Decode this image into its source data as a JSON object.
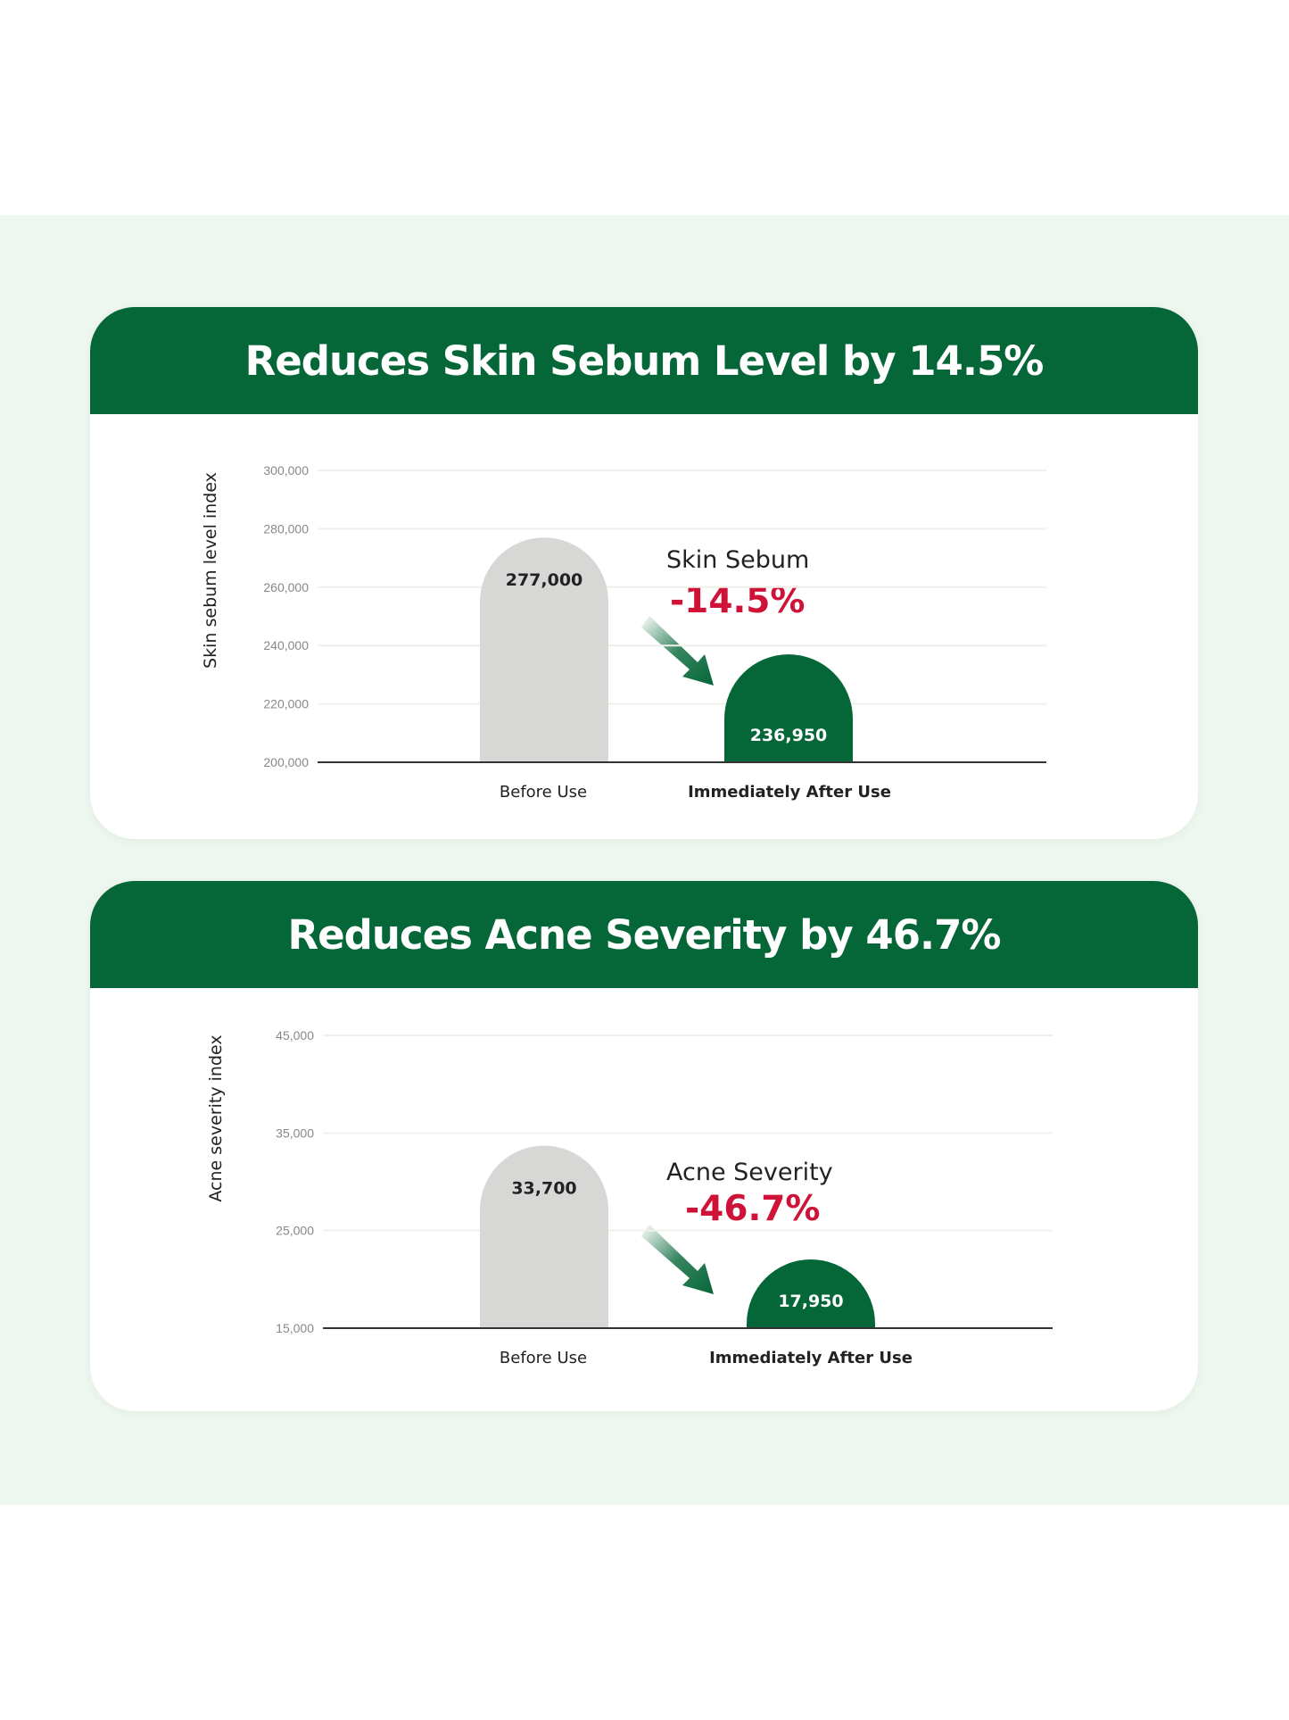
{
  "colors": {
    "background": "#eef7ef",
    "header": "#056638",
    "before_bar": "#d7d8d6",
    "after_bar": "#056638",
    "highlight": "#cf1237"
  },
  "chart_data": [
    {
      "type": "bar",
      "title": "Reduces Skin Sebum Level by 14.5%",
      "ylabel": "Skin sebum level index",
      "ylim": [
        200000,
        300000
      ],
      "yticks": [
        "300,000",
        "280,000",
        "260,000",
        "240,000",
        "220,000",
        "200,000"
      ],
      "ytick_values": [
        300000,
        280000,
        260000,
        240000,
        220000,
        200000
      ],
      "categories": [
        "Before Use",
        "Immediately After Use"
      ],
      "values": [
        277000,
        236950
      ],
      "value_labels": [
        "277,000",
        "236,950"
      ],
      "annotation": {
        "label": "Skin Sebum",
        "change": "-14.5%"
      },
      "grid": true
    },
    {
      "type": "bar",
      "title": "Reduces Acne Severity by 46.7%",
      "ylabel": "Acne severity index",
      "ylim": [
        15000,
        45000
      ],
      "yticks": [
        "45,000",
        "35,000",
        "25,000",
        "15,000"
      ],
      "ytick_values": [
        45000,
        35000,
        25000,
        15000
      ],
      "categories": [
        "Before Use",
        "Immediately After Use"
      ],
      "values": [
        33700,
        17950
      ],
      "value_labels": [
        "33,700",
        "17,950"
      ],
      "annotation": {
        "label": "Acne Severity",
        "change": "-46.7%"
      },
      "grid": true
    }
  ]
}
